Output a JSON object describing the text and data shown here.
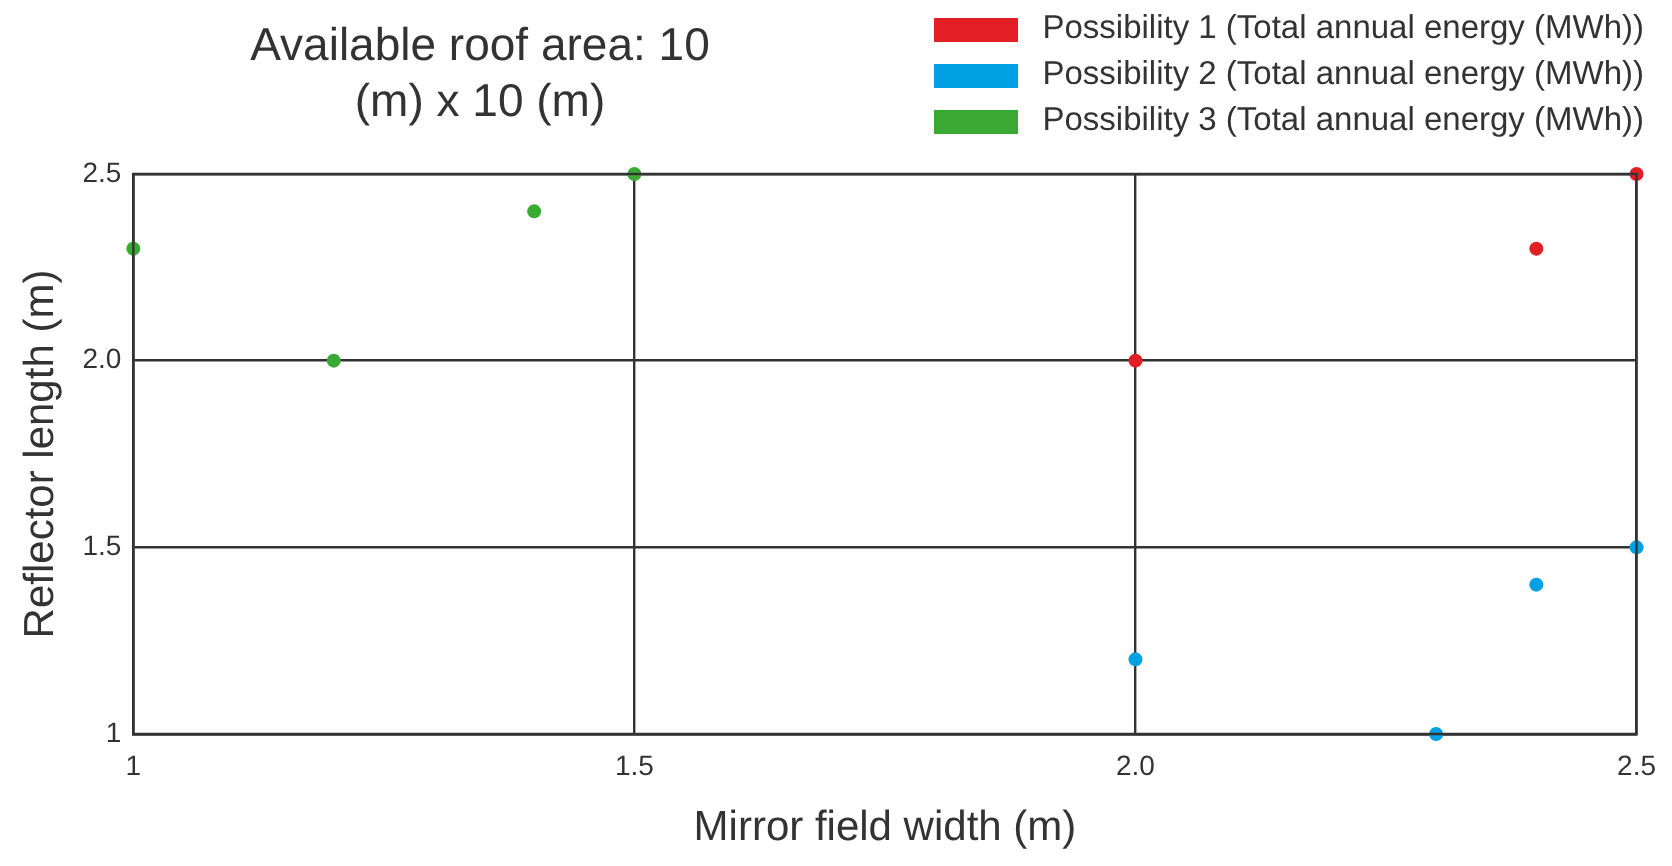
{
  "chart_data": {
    "type": "scatter",
    "title": "Available roof area: 10 (m) x 10 (m)",
    "xlabel": "Mirror field width (m)",
    "ylabel": "Reflector length (m)",
    "series": [
      {
        "name": "Possibility 1 (Total annual energy (MWh))",
        "color": "#e31e24",
        "x": [
          2.0,
          2.4,
          2.5
        ],
        "values": [
          2.0,
          2.3,
          2.5
        ]
      },
      {
        "name": "Possibility 2 (Total annual energy (MWh))",
        "color": "#00a0e3",
        "x": [
          2.0,
          2.3,
          2.4,
          2.5
        ],
        "values": [
          1.2,
          1.0,
          1.4,
          1.5
        ]
      },
      {
        "name": "Possibility 3 (Total annual energy (MWh))",
        "color": "#3aaa35",
        "x": [
          1.0,
          1.2,
          1.4,
          1.5
        ],
        "values": [
          2.3,
          2.0,
          2.4,
          2.5
        ]
      }
    ],
    "xlim": [
      1,
      2.5
    ],
    "xticks": [
      1,
      1.5,
      {
        "value": 2,
        "label": "2.0"
      },
      2.5
    ],
    "ylim": [
      1,
      2.5
    ],
    "yticks": [
      1,
      1.5,
      {
        "value": 2,
        "label": "2.0"
      },
      2.5
    ],
    "grid": true,
    "legend": "top right",
    "marker": "circle"
  }
}
